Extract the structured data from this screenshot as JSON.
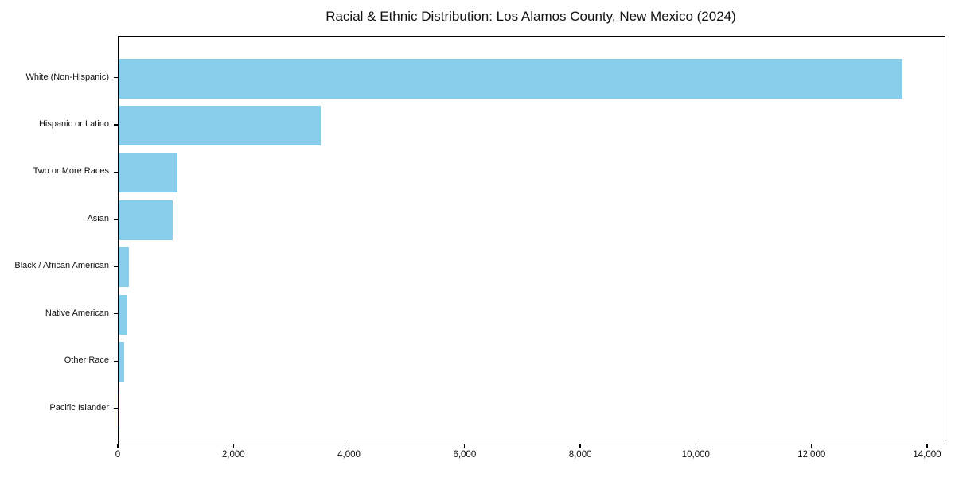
{
  "chart_data": {
    "type": "bar",
    "orientation": "horizontal",
    "title": "Racial & Ethnic Distribution: Los Alamos County, New Mexico (2024)",
    "categories": [
      "White (Non-Hispanic)",
      "Hispanic or Latino",
      "Two or More Races",
      "Asian",
      "Black / African American",
      "Native American",
      "Other Race",
      "Pacific Islander"
    ],
    "values": [
      13560,
      3490,
      1020,
      940,
      180,
      150,
      95,
      15
    ],
    "xlabel": "",
    "ylabel": "",
    "xlim": [
      0,
      14290
    ],
    "x_ticks": [
      0,
      2000,
      4000,
      6000,
      8000,
      10000,
      12000,
      14000
    ],
    "x_tick_labels": [
      "0",
      "2,000",
      "4,000",
      "6,000",
      "8,000",
      "10,000",
      "12,000",
      "14,000"
    ],
    "bar_color": "#87CEEB",
    "axis_color": "#000000",
    "grid": false,
    "legend": false
  }
}
